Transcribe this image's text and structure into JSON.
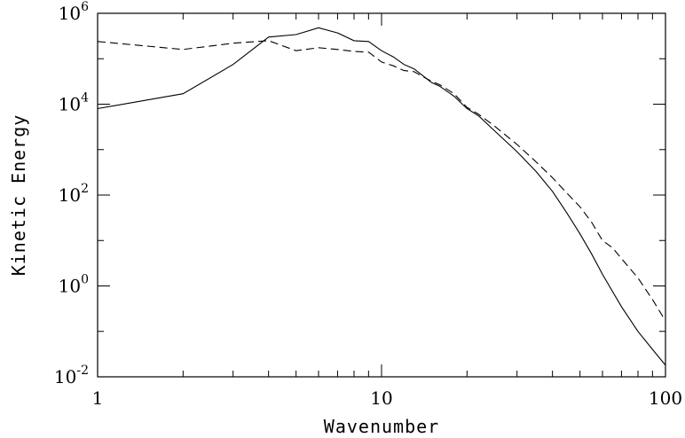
{
  "chart_data": {
    "type": "line",
    "title": "",
    "xlabel": "Wavenumber",
    "ylabel": "Kinetic Energy",
    "xscale": "log",
    "yscale": "log",
    "xlim": [
      1,
      100
    ],
    "ylim": [
      0.01,
      1000000
    ],
    "grid": false,
    "x_tick_labels": [
      {
        "value": 1,
        "text": "1"
      },
      {
        "value": 10,
        "text": "10"
      },
      {
        "value": 100,
        "text": "100"
      }
    ],
    "y_tick_labels": [
      {
        "value": 0.01,
        "base": "10",
        "exp": "-2"
      },
      {
        "value": 1,
        "base": "10",
        "exp": "0"
      },
      {
        "value": 100,
        "base": "10",
        "exp": "2"
      },
      {
        "value": 10000,
        "base": "10",
        "exp": "4"
      },
      {
        "value": 1000000,
        "base": "10",
        "exp": "6"
      }
    ],
    "series": [
      {
        "style": "solid",
        "points": [
          [
            1,
            8000
          ],
          [
            2,
            17000
          ],
          [
            3,
            75000
          ],
          [
            4,
            300000
          ],
          [
            5,
            340000
          ],
          [
            6,
            480000
          ],
          [
            7,
            370000
          ],
          [
            8,
            250000
          ],
          [
            9,
            240000
          ],
          [
            10,
            150000
          ],
          [
            11,
            110000
          ],
          [
            12,
            75000
          ],
          [
            13,
            60000
          ],
          [
            14,
            42000
          ],
          [
            15,
            30000
          ],
          [
            16,
            25000
          ],
          [
            18,
            15000
          ],
          [
            20,
            8000
          ],
          [
            22,
            5500
          ],
          [
            25,
            2600
          ],
          [
            30,
            900
          ],
          [
            35,
            330
          ],
          [
            40,
            120
          ],
          [
            45,
            40
          ],
          [
            50,
            14
          ],
          [
            55,
            5
          ],
          [
            60,
            1.8
          ],
          [
            70,
            0.35
          ],
          [
            80,
            0.1
          ],
          [
            90,
            0.04
          ],
          [
            100,
            0.018
          ]
        ]
      },
      {
        "style": "dashed",
        "points": [
          [
            1,
            240000
          ],
          [
            2,
            160000
          ],
          [
            3,
            220000
          ],
          [
            4,
            250000
          ],
          [
            5,
            150000
          ],
          [
            6,
            175000
          ],
          [
            7,
            160000
          ],
          [
            8,
            145000
          ],
          [
            9,
            140000
          ],
          [
            10,
            85000
          ],
          [
            11,
            70000
          ],
          [
            12,
            55000
          ],
          [
            13,
            52000
          ],
          [
            14,
            40000
          ],
          [
            15,
            32000
          ],
          [
            16,
            27000
          ],
          [
            18,
            17000
          ],
          [
            20,
            8500
          ],
          [
            22,
            6000
          ],
          [
            25,
            3300
          ],
          [
            30,
            1300
          ],
          [
            35,
            540
          ],
          [
            40,
            240
          ],
          [
            45,
            110
          ],
          [
            50,
            55
          ],
          [
            55,
            25
          ],
          [
            60,
            10
          ],
          [
            65,
            7
          ],
          [
            70,
            4
          ],
          [
            80,
            1.5
          ],
          [
            90,
            0.5
          ],
          [
            100,
            0.17
          ]
        ]
      }
    ]
  }
}
